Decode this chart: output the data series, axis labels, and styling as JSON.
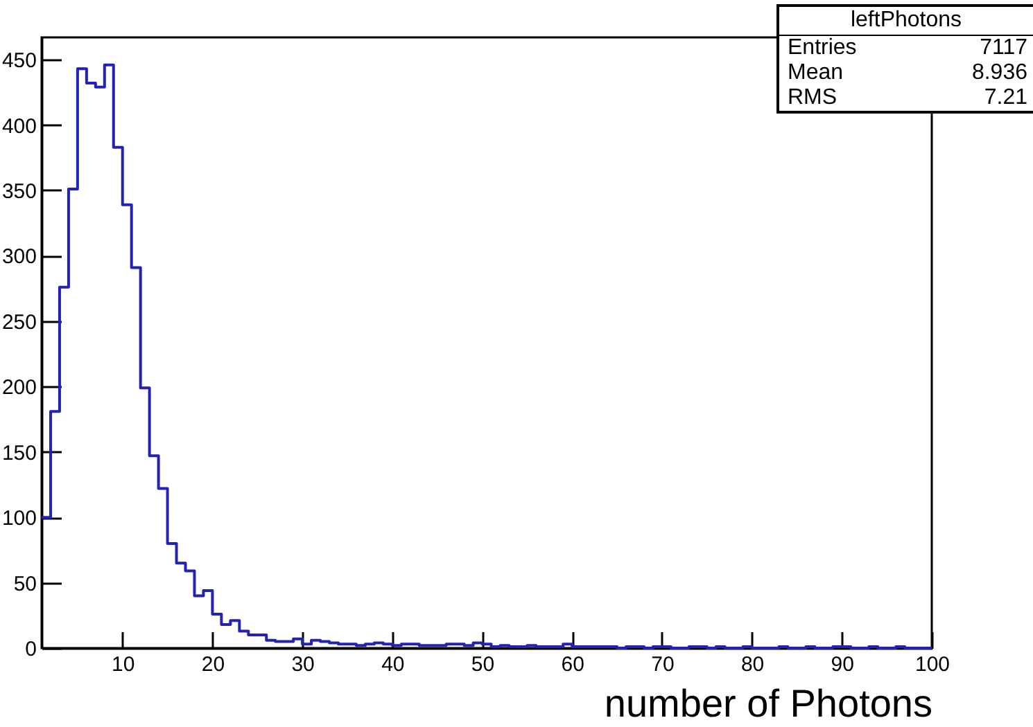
{
  "chart_data": {
    "type": "histogram",
    "title": "leftPhotons",
    "xlabel": "number of Photons",
    "annotations": [
      "Entries",
      "7117",
      "Mean",
      "8.936",
      "RMS",
      "7.21"
    ],
    "bins": [
      1,
      2,
      3,
      4,
      5,
      6,
      7,
      8,
      9,
      10,
      11,
      12,
      13,
      14,
      15,
      16,
      17,
      18,
      19,
      20,
      21,
      22,
      23,
      24,
      25,
      26,
      27,
      28,
      29,
      30,
      31,
      32,
      33,
      34,
      35,
      36,
      37,
      38,
      39,
      40,
      41,
      42,
      43,
      44,
      45,
      46,
      47,
      48,
      49,
      50,
      51,
      52,
      53,
      54,
      55,
      56,
      57,
      58,
      59,
      60,
      61,
      62,
      63,
      64,
      65,
      66,
      67,
      68,
      69,
      70,
      71,
      72,
      73,
      74,
      75,
      76,
      77,
      78,
      79,
      80,
      81,
      82,
      83,
      84,
      85,
      86,
      87,
      88,
      89,
      90,
      91,
      92,
      93,
      94,
      95,
      96,
      97,
      98,
      99,
      100
    ],
    "values": [
      100,
      181,
      276,
      351,
      443,
      432,
      429,
      446,
      383,
      339,
      291,
      199,
      147,
      122,
      80,
      65,
      59,
      40,
      44,
      26,
      18,
      21,
      13,
      10,
      10,
      6,
      5,
      5,
      7,
      3,
      6,
      5,
      4,
      3,
      3,
      2,
      3,
      4,
      3,
      2,
      3,
      3,
      2,
      2,
      2,
      3,
      3,
      2,
      4,
      3,
      1,
      2,
      1,
      1,
      2,
      1,
      1,
      1,
      3,
      1,
      1,
      1,
      1,
      1,
      0,
      1,
      1,
      0,
      1,
      1,
      0,
      0,
      1,
      1,
      0,
      1,
      0,
      0,
      1,
      0,
      0,
      0,
      1,
      0,
      0,
      1,
      0,
      0,
      1,
      1,
      0,
      0,
      1,
      0,
      0,
      1,
      0,
      0,
      0
    ],
    "color": "#2222b4",
    "xlim": [
      1,
      100
    ],
    "xticks": [
      10,
      20,
      30,
      40,
      50,
      60,
      70,
      80,
      90,
      100
    ],
    "ylim": [
      0,
      467
    ],
    "yticks": [
      0,
      50,
      100,
      150,
      200,
      250,
      300,
      350,
      400,
      450
    ]
  }
}
